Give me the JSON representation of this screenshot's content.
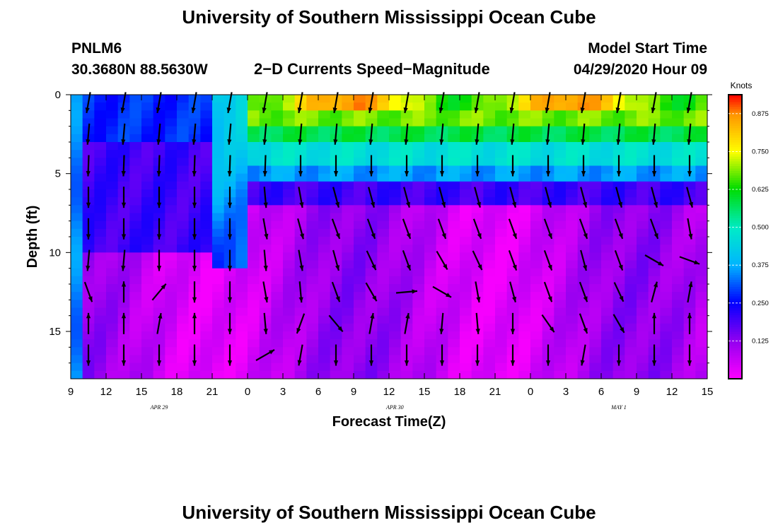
{
  "title": "University of Southern Mississippi Ocean Cube",
  "footer_title": "University of Southern Mississippi Ocean Cube",
  "station": {
    "id": "PNLM6",
    "coords": "30.3680N 88.5630W"
  },
  "subtitle": "2−D Currents Speed−Magnitude",
  "model": {
    "label": "Model Start Time",
    "value": "04/29/2020 Hour 09"
  },
  "chart_data": {
    "type": "heatmap",
    "xlabel": "Forecast Time(Z)",
    "ylabel": "Depth (ft)",
    "x_ticks": [
      "9",
      "12",
      "15",
      "18",
      "21",
      "0",
      "3",
      "6",
      "9",
      "12",
      "15",
      "18",
      "21",
      "0",
      "3",
      "6",
      "9",
      "12",
      "15"
    ],
    "x_range_hours_from_start": [
      0,
      54
    ],
    "date_labels": [
      {
        "text": "APR 29",
        "hour": 7.5
      },
      {
        "text": "APR 30",
        "hour": 27.5
      },
      {
        "text": "MAY 1",
        "hour": 46.5
      }
    ],
    "y_ticks": [
      0,
      5,
      10,
      15
    ],
    "y_range": [
      0,
      18
    ],
    "y_reversed": true,
    "colorbar": {
      "unit": "Knots",
      "range": [
        0,
        0.9375
      ],
      "ticks": [
        "0.125",
        "0.250",
        "0.375",
        "0.500",
        "0.625",
        "0.750",
        "0.875"
      ],
      "tick_values": [
        0.125,
        0.25,
        0.375,
        0.5,
        0.625,
        0.75,
        0.875
      ]
    },
    "speed_notes": "Surface layer (0-3 ft) strong after hour 15 (0.55-0.9 kn); mid-depth 0.3-0.5 kn; deep layer weak (0.02-0.15 kn)",
    "vector_hours": [
      1.5,
      4.5,
      7.5,
      10.5,
      13.5,
      16.5,
      19.5,
      22.5,
      25.5,
      28.5,
      31.5,
      34.5,
      37.5,
      40.5,
      43.5,
      46.5,
      49.5,
      52.5
    ],
    "vector_depths": [
      0.5,
      2.5,
      4.5,
      6.5,
      8.5,
      10.5,
      12.5,
      14.5,
      16.5
    ],
    "vector_directions_deg": [
      [
        190,
        190,
        190,
        190,
        190,
        190,
        190,
        190,
        190,
        190,
        190,
        190,
        190,
        190,
        190,
        190,
        190,
        190
      ],
      [
        185,
        185,
        185,
        185,
        185,
        185,
        185,
        185,
        185,
        185,
        185,
        185,
        185,
        185,
        185,
        185,
        185,
        185
      ],
      [
        182,
        182,
        182,
        182,
        182,
        182,
        180,
        180,
        180,
        180,
        180,
        180,
        180,
        180,
        180,
        180,
        180,
        180
      ],
      [
        180,
        180,
        180,
        180,
        180,
        175,
        170,
        165,
        165,
        165,
        165,
        165,
        165,
        165,
        165,
        165,
        165,
        165
      ],
      [
        180,
        180,
        180,
        180,
        180,
        170,
        165,
        160,
        160,
        160,
        160,
        160,
        160,
        160,
        160,
        160,
        160,
        170
      ],
      [
        185,
        185,
        180,
        180,
        180,
        175,
        170,
        165,
        155,
        160,
        150,
        155,
        160,
        160,
        165,
        160,
        120,
        110
      ],
      [
        160,
        0,
        40,
        180,
        180,
        170,
        175,
        160,
        150,
        85,
        120,
        170,
        165,
        160,
        160,
        155,
        15,
        10
      ],
      [
        0,
        0,
        10,
        0,
        180,
        175,
        200,
        140,
        10,
        10,
        185,
        175,
        180,
        145,
        160,
        150,
        0,
        0
      ],
      [
        180,
        180,
        180,
        180,
        180,
        60,
        190,
        180,
        180,
        180,
        180,
        180,
        180,
        180,
        190,
        180,
        180,
        180
      ]
    ]
  }
}
